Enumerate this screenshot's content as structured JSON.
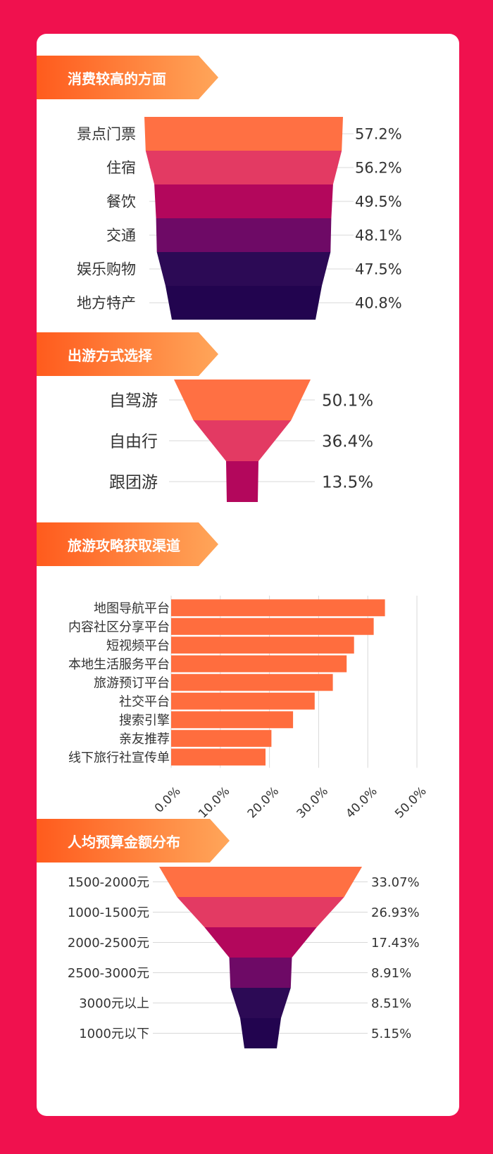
{
  "colors": {
    "background": "#f0114e",
    "card": "#ffffff",
    "banner_from": "#ff5b1d",
    "banner_to": "#ffa65a",
    "funnel": [
      "#ff7043",
      "#e33a63",
      "#b3075c",
      "#6e0a66",
      "#2c0a55",
      "#22044f"
    ],
    "bar": "#ff6d3e",
    "axis": "#d8d8d8"
  },
  "sections": {
    "spending": {
      "title": "消费较高的方面"
    },
    "travel_mode": {
      "title": "出游方式选择"
    },
    "guide_channel": {
      "title": "旅游攻略获取渠道"
    },
    "budget": {
      "title": "人均预算金额分布"
    }
  },
  "chart_data": [
    {
      "type": "funnel",
      "title": "消费较高的方面",
      "categories": [
        "景点门票",
        "住宿",
        "餐饮",
        "交通",
        "娱乐购物",
        "地方特产"
      ],
      "values": [
        57.2,
        56.2,
        49.5,
        48.1,
        47.5,
        40.8
      ],
      "value_labels": [
        "57.2%",
        "56.2%",
        "49.5%",
        "48.1%",
        "47.5%",
        "40.8%"
      ]
    },
    {
      "type": "funnel",
      "title": "出游方式选择",
      "categories": [
        "自驾游",
        "自由行",
        "跟团游"
      ],
      "values": [
        50.1,
        36.4,
        13.5
      ],
      "value_labels": [
        "50.1%",
        "36.4%",
        "13.5%"
      ]
    },
    {
      "type": "bar",
      "orientation": "horizontal",
      "title": "旅游攻略获取渠道",
      "categories": [
        "地图导航平台",
        "内容社区分享平台",
        "短视频平台",
        "本地生活服务平台",
        "旅游预订平台",
        "社交平台",
        "搜索引擎",
        "亲友推荐",
        "线下旅行社宣传单"
      ],
      "values": [
        43.5,
        41.2,
        37.2,
        35.7,
        32.9,
        29.2,
        24.8,
        20.4,
        19.2
      ],
      "xlim": [
        0,
        50
      ],
      "x_ticks": [
        "0.0%",
        "10.0%",
        "20.0%",
        "30.0%",
        "40.0%",
        "50.0%"
      ],
      "grid": true
    },
    {
      "type": "funnel",
      "title": "人均预算金额分布",
      "categories": [
        "1500-2000元",
        "1000-1500元",
        "2000-2500元",
        "2500-3000元",
        "3000元以上",
        "1000元以下"
      ],
      "values": [
        33.07,
        26.93,
        17.43,
        8.91,
        8.51,
        5.15
      ],
      "value_labels": [
        "33.07%",
        "26.93%",
        "17.43%",
        "8.91%",
        "8.51%",
        "5.15%"
      ]
    }
  ]
}
